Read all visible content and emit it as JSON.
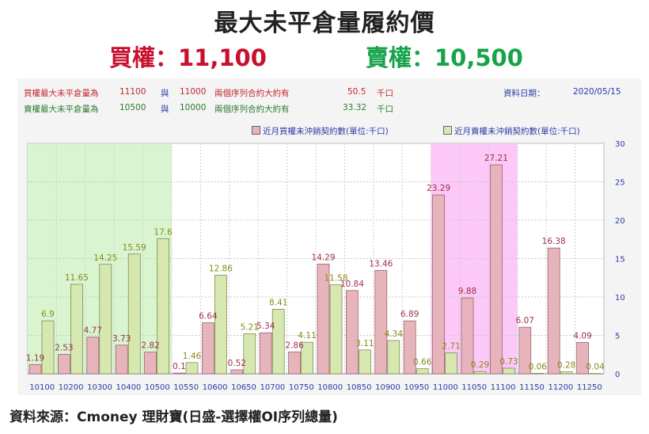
{
  "title": "最大未平倉量履約價",
  "max_call": {
    "label": "買權：11,100"
  },
  "max_put": {
    "label": "賣權：10,500"
  },
  "info_rows": [
    {
      "name": "買權最大未平倉量為",
      "strike1": "11100",
      "conj": "與",
      "strike2": "11000",
      "desc": "兩個序列合約大約有",
      "value": "50.5",
      "unit": "千口"
    },
    {
      "name": "賣權最大未平倉量為",
      "strike1": "10500",
      "conj": "與",
      "strike2": "10000",
      "desc": "兩個序列合約大約有",
      "value": "33.32",
      "unit": "千口"
    }
  ],
  "date": {
    "label": "資料日期：",
    "value": "2020/05/15"
  },
  "footer": "資料來源：Cmoney 理財寶(日盛-選擇權OI序列總量)",
  "colors": {
    "call": "#e8b4bc",
    "put": "#d6e8b0",
    "call_label": "#a0304a",
    "put_label": "#8a8a18",
    "highlight_green": "#d8f5d0",
    "highlight_pink": "#fbc8f8",
    "axis_text": "#2d3aa5"
  },
  "chart_data": {
    "type": "bar",
    "categories": [
      "10100",
      "10200",
      "10300",
      "10400",
      "10500",
      "10550",
      "10600",
      "10650",
      "10700",
      "10750",
      "10800",
      "10850",
      "10900",
      "10950",
      "11000",
      "11050",
      "11100",
      "11150",
      "11200",
      "11250"
    ],
    "series": [
      {
        "name": "近月買權未沖銷契約數(單位:千口)",
        "values": [
          1.19,
          2.53,
          4.77,
          3.73,
          2.82,
          0.1,
          6.64,
          0.52,
          5.34,
          2.86,
          14.29,
          10.84,
          13.46,
          6.89,
          23.29,
          9.88,
          27.21,
          6.07,
          16.38,
          4.09
        ]
      },
      {
        "name": "近月賣權未沖銷契約數(單位:千口)",
        "values": [
          6.9,
          11.65,
          14.25,
          15.59,
          17.6,
          1.46,
          12.86,
          5.21,
          8.41,
          4.11,
          11.58,
          3.11,
          4.34,
          0.66,
          2.71,
          0.29,
          0.73,
          0.06,
          0.28,
          0.04
        ]
      }
    ],
    "yticks": [
      "0",
      "5",
      "10",
      "15",
      "20",
      "25",
      "30"
    ],
    "ylim": [
      0,
      30
    ],
    "highlight_ranges": [
      {
        "from": "10100",
        "to": "10500",
        "color": "green"
      },
      {
        "from": "11000",
        "to": "11100",
        "color": "pink"
      }
    ],
    "grid": true,
    "legend_position": "top"
  }
}
